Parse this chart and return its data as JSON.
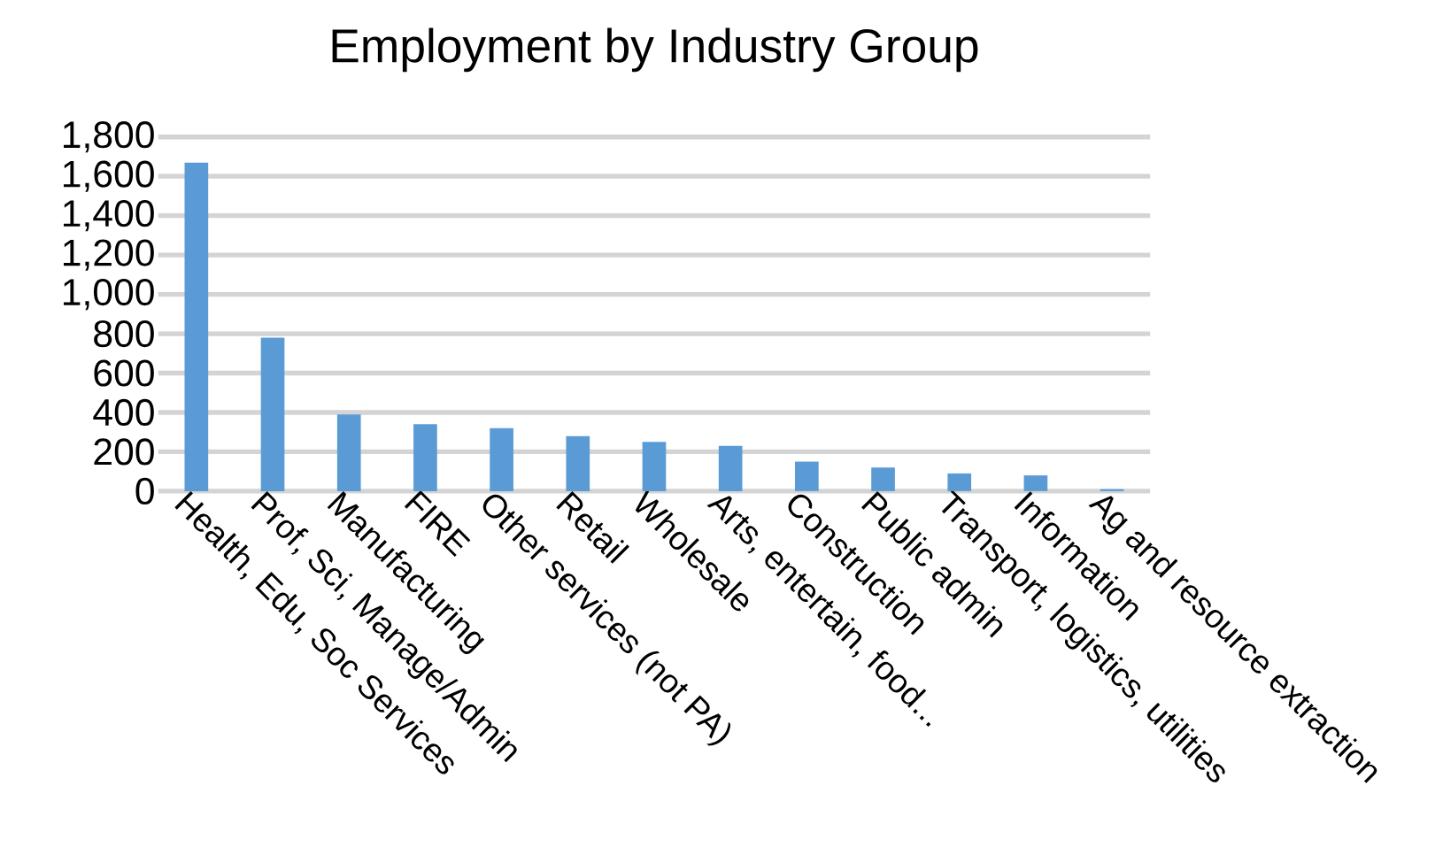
{
  "chart_data": {
    "type": "bar",
    "title": "Employment by Industry Group",
    "categories": [
      "Health, Edu, Soc Services",
      "Prof, Sci, Manage/Admin",
      "Manufacturing",
      "FIRE",
      "Other services (not PA)",
      "Retail",
      "Wholesale",
      "Arts, entertain, food...",
      "Construction",
      "Public admin",
      "Transport, logistics, utilities",
      "Information",
      "Ag and resource extraction"
    ],
    "values": [
      1670,
      780,
      390,
      340,
      320,
      280,
      250,
      230,
      150,
      120,
      90,
      80,
      10
    ],
    "color": "#5b9bd5",
    "ylim": [
      0,
      1800
    ],
    "yticks": [
      0,
      200,
      400,
      600,
      800,
      {
        "value": 1000,
        "label": "1,000"
      },
      {
        "value": 1200,
        "label": "1,200"
      },
      {
        "value": 1400,
        "label": "1,400"
      },
      {
        "value": 1600,
        "label": "1,600"
      },
      {
        "value": 1800,
        "label": "1,800"
      }
    ],
    "grid": "y"
  }
}
